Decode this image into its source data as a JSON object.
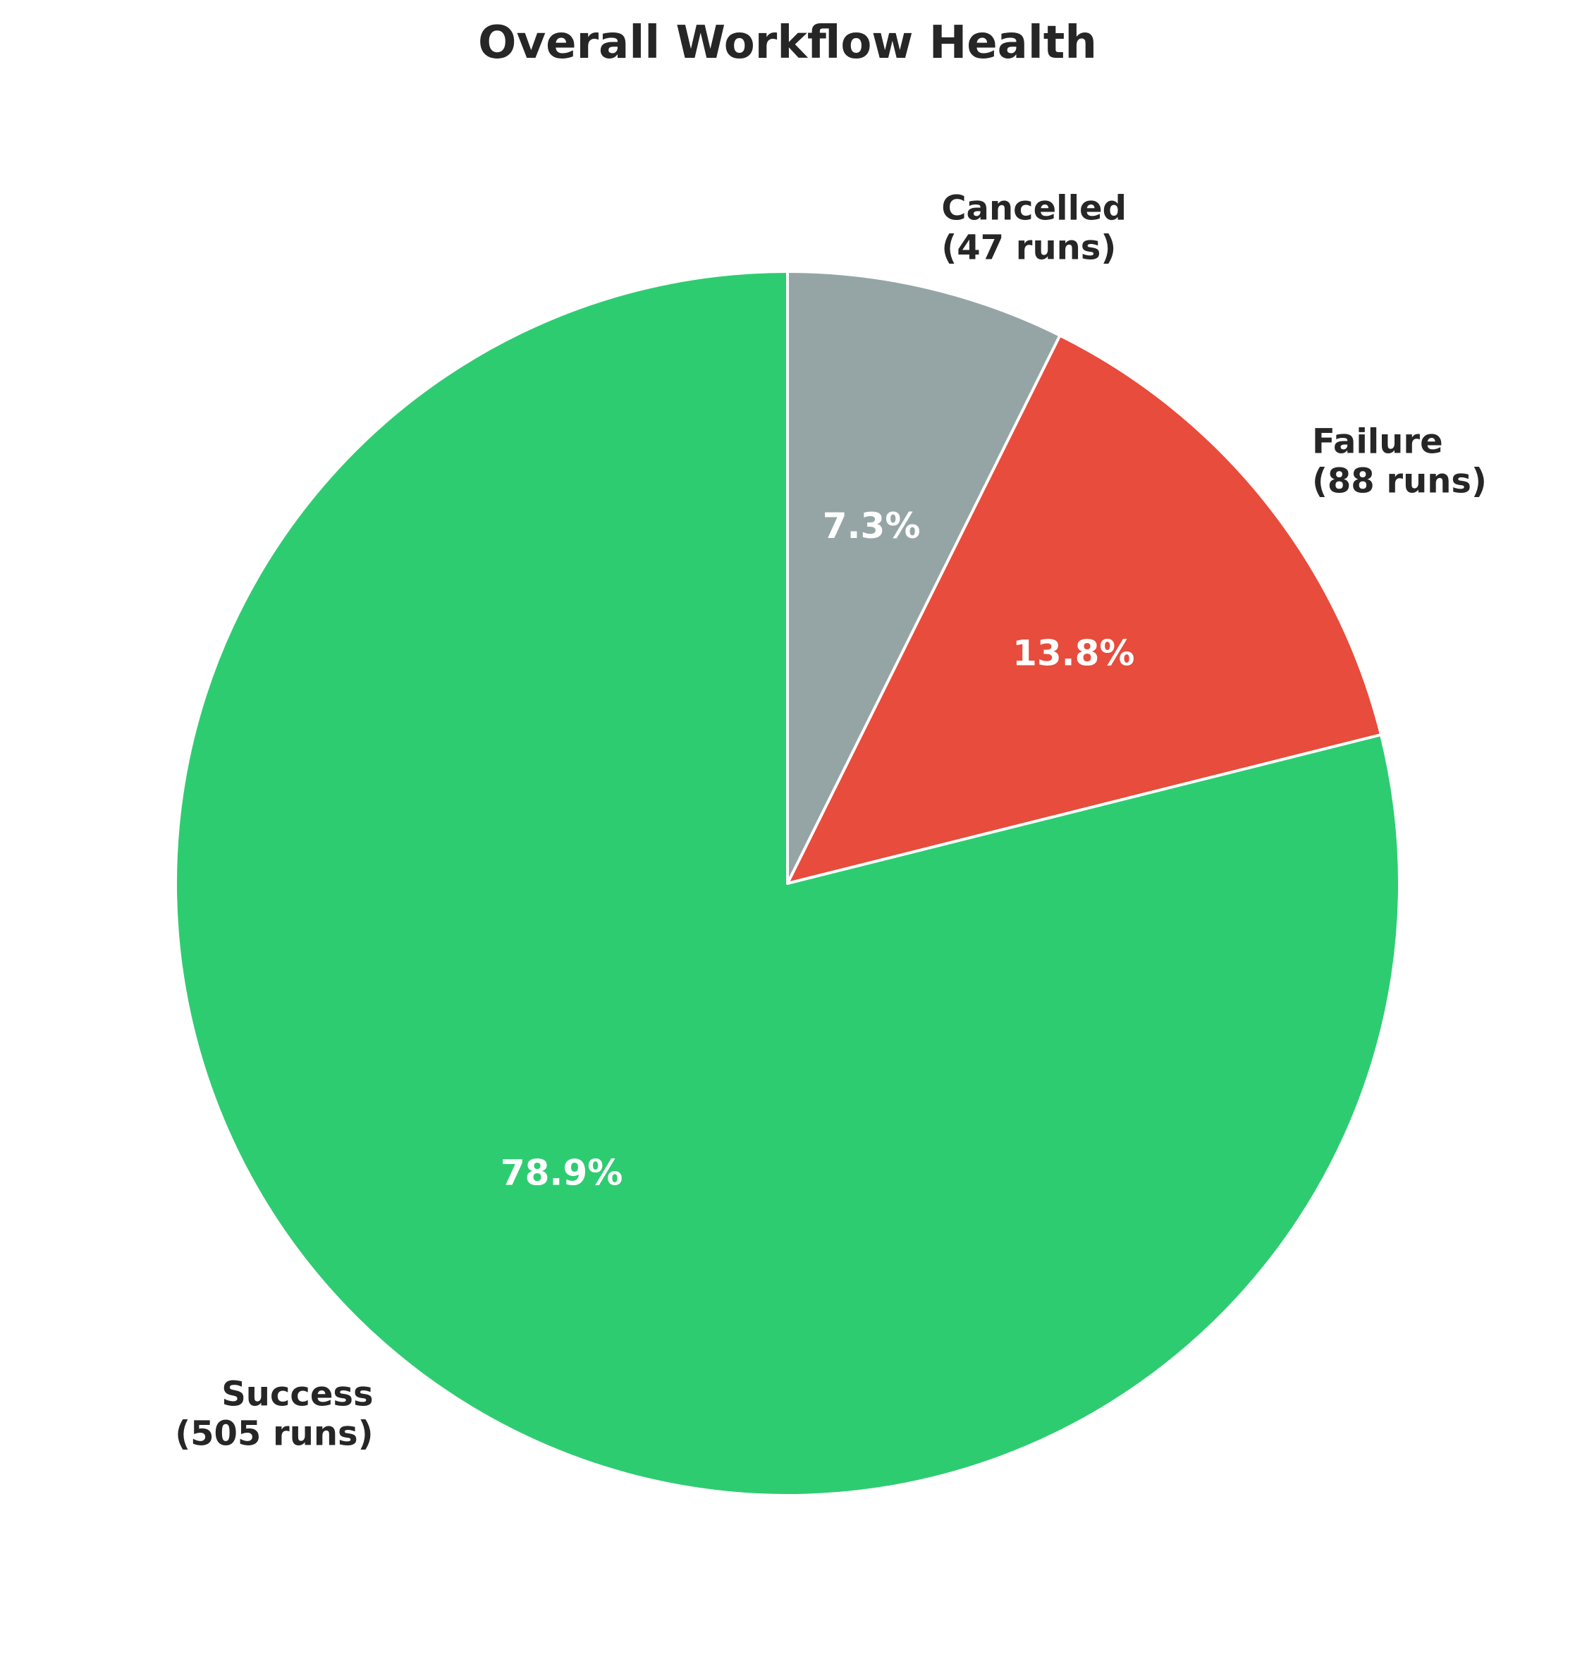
{
  "chart_data": {
    "type": "pie",
    "title": "Overall Workflow Health",
    "slices": [
      {
        "label": "Cancelled",
        "runs_text": "(47 runs)",
        "value": 47,
        "percent_text": "7.3%",
        "color": "#95a5a6"
      },
      {
        "label": "Failure",
        "runs_text": "(88 runs)",
        "value": 88,
        "percent_text": "13.8%",
        "color": "#e74c3c"
      },
      {
        "label": "Success",
        "runs_text": "(505 runs)",
        "value": 505,
        "percent_text": "78.9%",
        "color": "#2ecc71"
      }
    ],
    "start_angle_deg": 90,
    "direction": "clockwise",
    "edge_color": "#ffffff"
  }
}
